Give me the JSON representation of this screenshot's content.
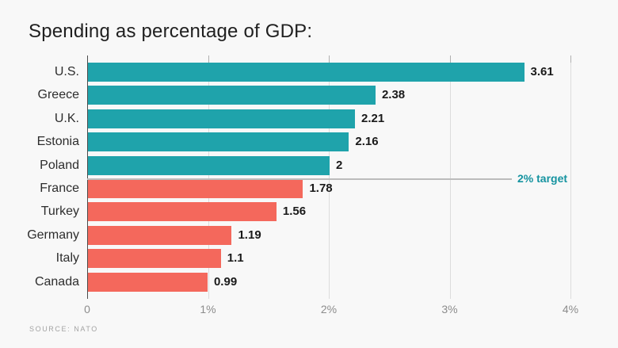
{
  "page": {
    "title": "Spending as percentage of GDP:",
    "source_note": "SOURCE: NATO"
  },
  "colors": {
    "background": "#f8f8f8",
    "above_target_bar": "#1fa3ab",
    "below_target_bar": "#f4685c",
    "target_text": "#1593a0",
    "target_line": "#bcbcbc",
    "gridline": "#dcdcdc",
    "zero_axis_line": "#4c4c4c",
    "title_text": "#1f1f1f",
    "value_text": "#1a1a1a",
    "category_text": "#2d2d2d",
    "axis_tick_text": "#8c8c8c"
  },
  "chart_data": {
    "type": "bar",
    "orientation": "horizontal",
    "title": "Spending as percentage of GDP:",
    "categories": [
      "U.S.",
      "Greece",
      "U.K.",
      "Estonia",
      "Poland",
      "France",
      "Turkey",
      "Germany",
      "Italy",
      "Canada"
    ],
    "values": [
      3.61,
      2.38,
      2.21,
      2.16,
      2,
      1.78,
      1.56,
      1.19,
      1.1,
      0.99
    ],
    "value_labels": [
      "3.61",
      "2.38",
      "2.21",
      "2.16",
      "2",
      "1.78",
      "1.56",
      "1.19",
      "1.1",
      "0.99"
    ],
    "bar_groups": [
      "above",
      "above",
      "above",
      "above",
      "above",
      "below",
      "below",
      "below",
      "below",
      "below"
    ],
    "x_tick_labels": [
      "0",
      "1%",
      "2%",
      "3%",
      "4%"
    ],
    "x_tick_values": [
      0,
      1,
      2,
      3,
      4
    ],
    "xlim": [
      0,
      4
    ],
    "target_annotation": {
      "value": 2,
      "label": "2% target"
    },
    "grid": true,
    "legend_position": "none",
    "source": "SOURCE: NATO"
  }
}
